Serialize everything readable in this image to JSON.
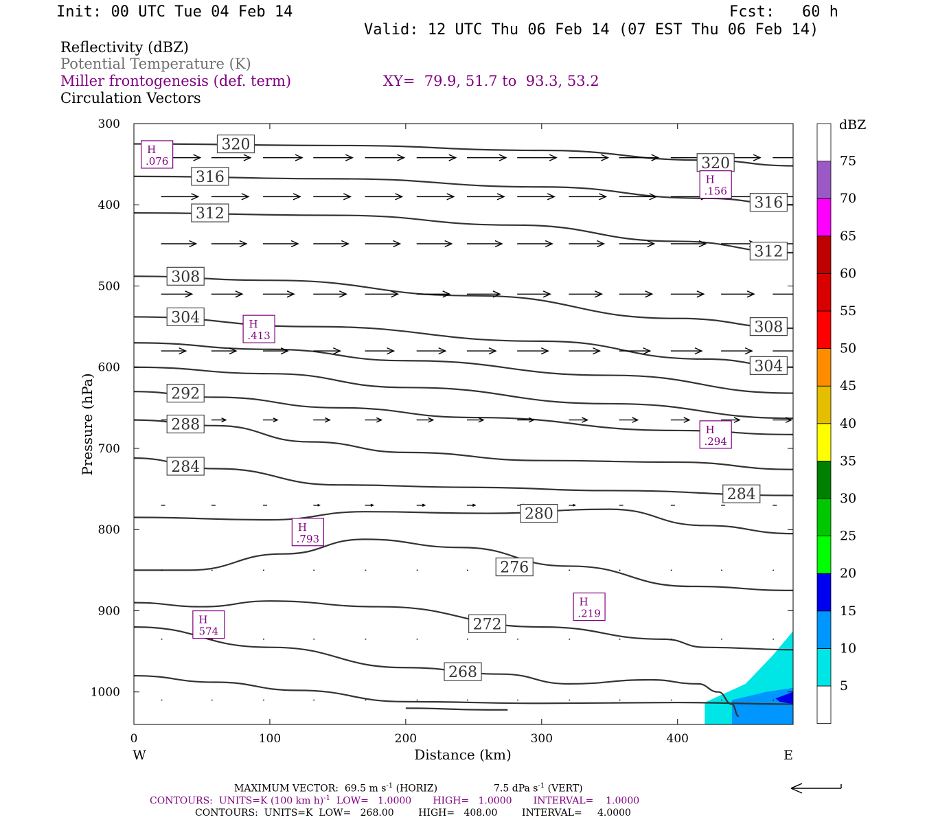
{
  "header": {
    "init": "Init: 00 UTC Tue 04 Feb 14",
    "fcst_label": "Fcst:",
    "fcst_value": "60 h",
    "valid": "Valid: 12 UTC Thu 06 Feb 14 (07 EST Thu 06 Feb 14)"
  },
  "legend": {
    "reflectivity": "Reflectivity (dBZ)",
    "theta": "Potential Temperature (K)",
    "frontogenesis": "Miller frontogenesis (def. term)",
    "xy": "XY=  79.9, 51.7 to  93.3, 53.2",
    "vectors": "Circulation Vectors"
  },
  "colors": {
    "purple": "#800080",
    "theta_line": "#333333",
    "text": "#000000"
  },
  "footer": {
    "max_vector": "MAXIMUM VECTOR:  69.5 m s",
    "max_vector_sup": "-1",
    "max_vector_horiz": " (HORIZ)",
    "max_vector_vert": "7.5 dPa s",
    "max_vector_vert_sup": "-1",
    "max_vector_vert_tail": " (VERT)",
    "contours1_a": "CONTOURS:  UNITS=K (100 km h)",
    "contours1_sup": "-1",
    "contours1_b": "  LOW=   1.0000       HIGH=   1.0000       INTERVAL=    1.0000",
    "contours2": "CONTOURS:  UNITS=K  LOW=   268.00        HIGH=   408.00        INTERVAL=     4.0000"
  },
  "chart_data": {
    "type": "cross-section",
    "xlabel": "Distance (km)",
    "ylabel": "Pressure (hPa)",
    "xlim": [
      0,
      485
    ],
    "ylim": [
      1040,
      300
    ],
    "x_ticks": [
      0,
      100,
      200,
      300,
      400
    ],
    "y_ticks": [
      300,
      400,
      500,
      600,
      700,
      800,
      900,
      1000
    ],
    "x_end_labels": {
      "left": "W",
      "right": "E"
    },
    "colorbar": {
      "unit": "dBZ",
      "levels": [
        5,
        10,
        15,
        20,
        25,
        30,
        35,
        40,
        45,
        50,
        55,
        60,
        65,
        70,
        75
      ],
      "colors": [
        "#ffffff",
        "#00e5e5",
        "#0096ff",
        "#0000f0",
        "#00ff00",
        "#00c800",
        "#008000",
        "#ffff00",
        "#e5be00",
        "#ff8c00",
        "#ff0000",
        "#d90000",
        "#bf0000",
        "#ff00ff",
        "#9b59c6",
        "#ffffff"
      ]
    },
    "theta_contours": [
      {
        "value": 320,
        "points": [
          [
            0,
            325
          ],
          [
            150,
            327
          ],
          [
            300,
            333
          ],
          [
            420,
            345
          ],
          [
            485,
            352
          ]
        ]
      },
      {
        "value": 316,
        "points": [
          [
            0,
            365
          ],
          [
            150,
            368
          ],
          [
            300,
            378
          ],
          [
            420,
            392
          ],
          [
            485,
            400
          ]
        ]
      },
      {
        "value": 312,
        "points": [
          [
            0,
            410
          ],
          [
            150,
            413
          ],
          [
            280,
            425
          ],
          [
            400,
            445
          ],
          [
            485,
            459
          ]
        ]
      },
      {
        "value": 308,
        "points": [
          [
            0,
            488
          ],
          [
            100,
            493
          ],
          [
            250,
            512
          ],
          [
            400,
            540
          ],
          [
            485,
            552
          ]
        ]
      },
      {
        "value": 304,
        "points": [
          [
            0,
            538
          ],
          [
            130,
            550
          ],
          [
            300,
            568
          ],
          [
            420,
            590
          ],
          [
            485,
            600
          ]
        ]
      },
      {
        "value": null,
        "points": [
          [
            0,
            570
          ],
          [
            100,
            578
          ],
          [
            200,
            592
          ],
          [
            350,
            610
          ],
          [
            485,
            632
          ]
        ]
      },
      {
        "value": null,
        "points": [
          [
            0,
            600
          ],
          [
            100,
            608
          ],
          [
            200,
            625
          ],
          [
            350,
            645
          ],
          [
            485,
            663
          ]
        ]
      },
      {
        "value": 292,
        "points": [
          [
            0,
            630
          ],
          [
            60,
            637
          ],
          [
            150,
            650
          ],
          [
            250,
            662
          ],
          [
            400,
            678
          ],
          [
            485,
            683
          ]
        ]
      },
      {
        "value": 288,
        "points": [
          [
            0,
            665
          ],
          [
            60,
            672
          ],
          [
            130,
            692
          ],
          [
            200,
            705
          ],
          [
            300,
            715
          ],
          [
            400,
            717
          ],
          [
            485,
            726
          ]
        ]
      },
      {
        "value": 284,
        "points": [
          [
            0,
            712
          ],
          [
            60,
            725
          ],
          [
            150,
            745
          ],
          [
            250,
            748
          ],
          [
            350,
            752
          ],
          [
            485,
            758
          ]
        ]
      },
      {
        "value": 280,
        "points": [
          [
            0,
            785
          ],
          [
            100,
            788
          ],
          [
            170,
            778
          ],
          [
            260,
            780
          ],
          [
            350,
            775
          ],
          [
            420,
            795
          ],
          [
            485,
            805
          ]
        ]
      },
      {
        "value": 276,
        "points": [
          [
            0,
            850
          ],
          [
            40,
            850
          ],
          [
            110,
            830
          ],
          [
            170,
            812
          ],
          [
            240,
            822
          ],
          [
            320,
            845
          ],
          [
            410,
            870
          ],
          [
            485,
            875
          ]
        ]
      },
      {
        "value": 272,
        "points": [
          [
            0,
            890
          ],
          [
            50,
            895
          ],
          [
            100,
            888
          ],
          [
            180,
            895
          ],
          [
            300,
            920
          ],
          [
            390,
            935
          ],
          [
            420,
            945
          ],
          [
            485,
            948
          ]
        ]
      },
      {
        "value": null,
        "points": [
          [
            0,
            920
          ],
          [
            100,
            945
          ],
          [
            200,
            970
          ],
          [
            270,
            978
          ],
          [
            320,
            990
          ],
          [
            380,
            985
          ],
          [
            415,
            990
          ],
          [
            430,
            1000
          ],
          [
            440,
            1015
          ],
          [
            445,
            1030
          ]
        ]
      },
      {
        "value": 268,
        "points": [
          [
            0,
            980
          ],
          [
            60,
            988
          ],
          [
            120,
            998
          ],
          [
            200,
            1012
          ],
          [
            300,
            1014
          ],
          [
            400,
            1013
          ],
          [
            485,
            1015
          ]
        ]
      },
      {
        "value": null,
        "points": [
          [
            200,
            1020
          ],
          [
            260,
            1022
          ],
          [
            275,
            1022
          ]
        ]
      }
    ],
    "theta_labels": [
      {
        "text": "320",
        "x": 75,
        "p": 325
      },
      {
        "text": "316",
        "x": 56,
        "p": 365
      },
      {
        "text": "312",
        "x": 56,
        "p": 410
      },
      {
        "text": "308",
        "x": 38,
        "p": 488
      },
      {
        "text": "304",
        "x": 38,
        "p": 538
      },
      {
        "text": "292",
        "x": 38,
        "p": 632
      },
      {
        "text": "288",
        "x": 38,
        "p": 670
      },
      {
        "text": "284",
        "x": 38,
        "p": 722
      },
      {
        "text": "280",
        "x": 298,
        "p": 780
      },
      {
        "text": "276",
        "x": 280,
        "p": 846
      },
      {
        "text": "272",
        "x": 260,
        "p": 916
      },
      {
        "text": "268",
        "x": 242,
        "p": 975
      },
      {
        "text": "320",
        "x": 428,
        "p": 348
      },
      {
        "text": "316",
        "x": 467,
        "p": 397
      },
      {
        "text": "312",
        "x": 467,
        "p": 457
      },
      {
        "text": "308",
        "x": 467,
        "p": 550
      },
      {
        "text": "304",
        "x": 467,
        "p": 598
      },
      {
        "text": "284",
        "x": 447,
        "p": 756
      }
    ],
    "frontogenesis_maxima": [
      {
        "label": "H",
        "value": ".076",
        "x": 17,
        "p": 338
      },
      {
        "label": "H",
        "value": ".156",
        "x": 428,
        "p": 375
      },
      {
        "label": "H",
        "value": ".413",
        "x": 92,
        "p": 553
      },
      {
        "label": "H",
        "value": ".294",
        "x": 428,
        "p": 683
      },
      {
        "label": "H",
        "value": ".793",
        "x": 128,
        "p": 803
      },
      {
        "label": "H",
        "value": ".219",
        "x": 335,
        "p": 895
      },
      {
        "label": "H",
        "value": "574",
        "x": 55,
        "p": 917
      }
    ],
    "vector_levels": [
      {
        "p": 342,
        "xs": [
          20,
          57,
          95,
          132,
          170,
          208,
          245,
          282,
          320,
          357,
          395,
          432,
          470
        ],
        "u": [
          0.95,
          0.95,
          0.95,
          0.95,
          0.95,
          0.95,
          0.95,
          0.95,
          0.95,
          0.95,
          0.95,
          0.95,
          0.95
        ]
      },
      {
        "p": 390,
        "xs": [
          20,
          57,
          95,
          132,
          170,
          208,
          245,
          282,
          320,
          357,
          395,
          432,
          470
        ],
        "u": [
          0.9,
          0.9,
          0.9,
          0.9,
          0.9,
          0.9,
          0.9,
          0.9,
          0.9,
          0.9,
          0.9,
          0.9,
          0.9
        ]
      },
      {
        "p": 448,
        "xs": [
          20,
          57,
          95,
          132,
          170,
          208,
          245,
          282,
          320,
          357,
          395,
          432,
          470
        ],
        "u": [
          0.85,
          0.85,
          0.85,
          0.85,
          0.85,
          0.85,
          0.85,
          0.85,
          0.85,
          0.85,
          0.85,
          0.85,
          0.85
        ]
      },
      {
        "p": 510,
        "xs": [
          20,
          57,
          95,
          132,
          170,
          208,
          245,
          282,
          320,
          357,
          395,
          432,
          470
        ],
        "u": [
          0.75,
          0.75,
          0.75,
          0.8,
          0.8,
          0.8,
          0.8,
          0.8,
          0.8,
          0.8,
          0.8,
          0.8,
          0.8
        ]
      },
      {
        "p": 580,
        "xs": [
          20,
          57,
          95,
          132,
          170,
          208,
          245,
          282,
          320,
          357,
          395,
          432,
          470
        ],
        "u": [
          0.6,
          0.6,
          0.6,
          0.65,
          0.7,
          0.7,
          0.7,
          0.75,
          0.75,
          0.75,
          0.75,
          0.75,
          0.75
        ]
      },
      {
        "p": 665,
        "xs": [
          20,
          57,
          95,
          132,
          170,
          208,
          245,
          282,
          320,
          357,
          395,
          432,
          470
        ],
        "u": [
          0.35,
          0.35,
          0.35,
          0.4,
          0.4,
          0.4,
          0.4,
          0.4,
          0.45,
          0.45,
          0.45,
          0.45,
          0.45
        ]
      },
      {
        "p": 770,
        "xs": [
          20,
          57,
          95,
          132,
          170,
          208,
          245,
          282,
          320,
          357,
          395,
          432,
          470
        ],
        "u": [
          0.1,
          0.1,
          0.1,
          0.15,
          0.2,
          0.2,
          0.2,
          0.2,
          0.15,
          0.1,
          0.1,
          0.1,
          0.1
        ]
      },
      {
        "p": 850,
        "xs": [
          20,
          57,
          95,
          132,
          170,
          208,
          245,
          282,
          320,
          357,
          395,
          432,
          470
        ],
        "u": [
          0.03,
          0.03,
          0.03,
          0.03,
          0.03,
          0.03,
          0.03,
          0.03,
          0.03,
          0.03,
          0.03,
          0.03,
          0.03
        ]
      },
      {
        "p": 935,
        "xs": [
          20,
          57,
          95,
          132,
          170,
          208,
          245,
          282,
          320,
          357,
          395,
          432,
          470
        ],
        "u": [
          0.03,
          0.03,
          0.03,
          0.03,
          0.03,
          0.03,
          0.03,
          0.03,
          0.03,
          0.03,
          0.03,
          0.03,
          0.03
        ]
      },
      {
        "p": 1010,
        "xs": [
          20,
          57,
          95,
          132,
          170,
          208,
          245,
          282,
          320,
          357,
          395,
          432,
          470
        ],
        "u": [
          0.03,
          0.03,
          0.03,
          0.03,
          0.03,
          0.03,
          0.03,
          0.03,
          0.03,
          0.03,
          0.03,
          0.03,
          0.03
        ]
      }
    ],
    "reflectivity_regions": [
      {
        "dbz": 5,
        "points": [
          [
            420,
            1013
          ],
          [
            450,
            990
          ],
          [
            470,
            955
          ],
          [
            485,
            925
          ],
          [
            485,
            1040
          ],
          [
            420,
            1040
          ]
        ]
      },
      {
        "dbz": 10,
        "points": [
          [
            440,
            1010
          ],
          [
            465,
            1000
          ],
          [
            485,
            995
          ],
          [
            485,
            1040
          ],
          [
            440,
            1040
          ]
        ]
      },
      {
        "dbz": 15,
        "points": [
          [
            472,
            1008
          ],
          [
            485,
            1000
          ],
          [
            485,
            1015
          ],
          [
            475,
            1012
          ]
        ]
      }
    ]
  }
}
